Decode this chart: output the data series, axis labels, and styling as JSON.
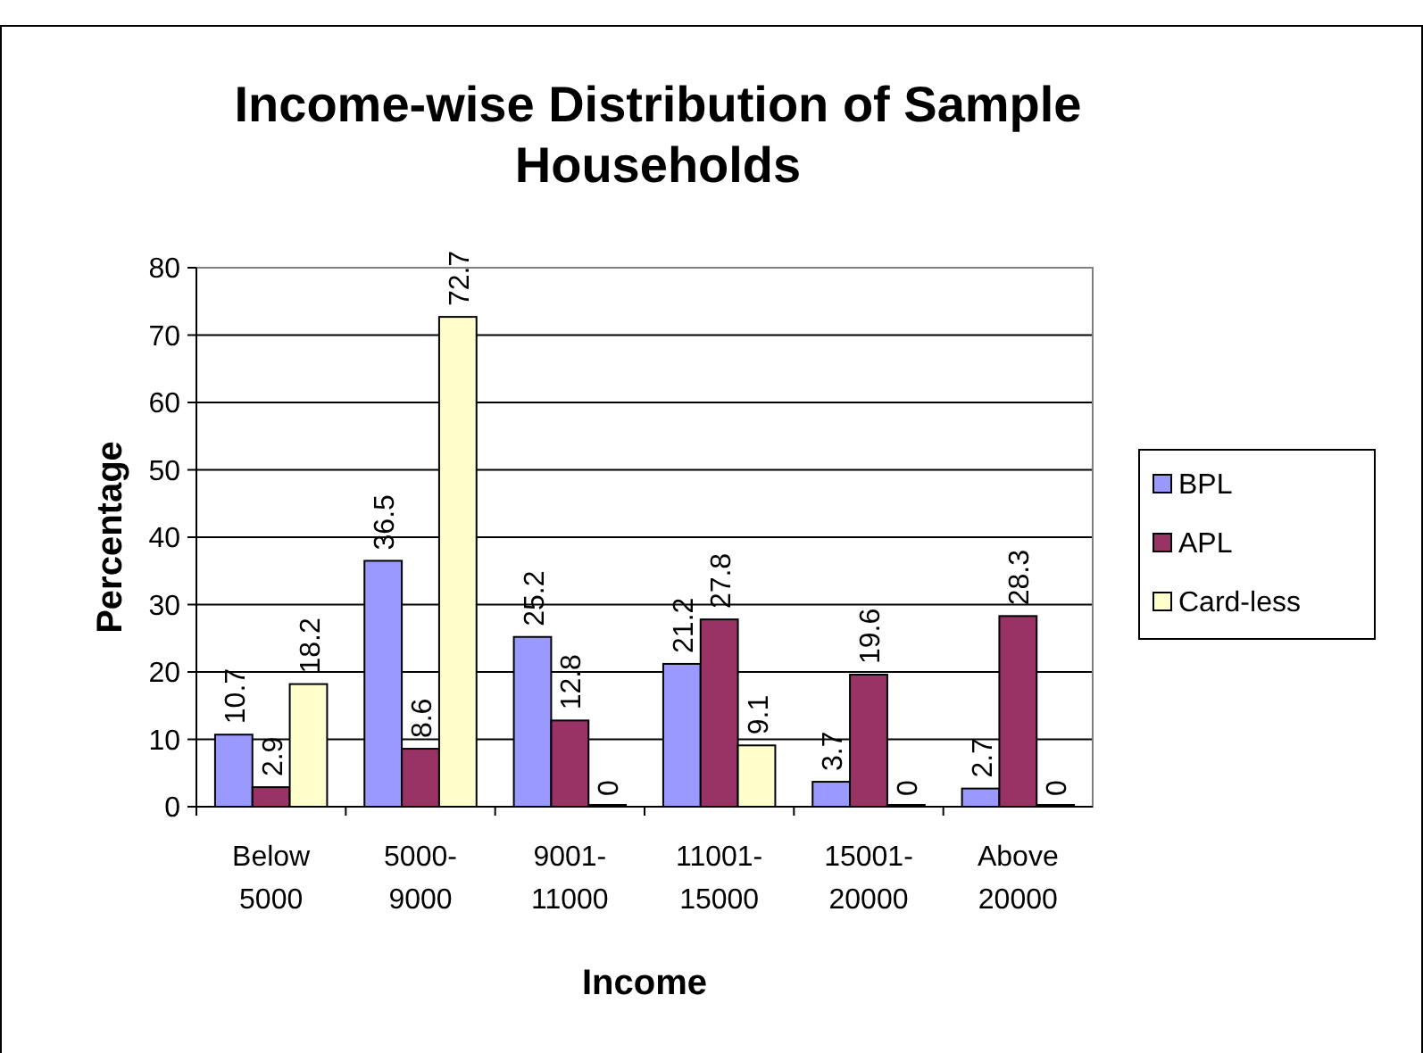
{
  "chart_data": {
    "type": "bar",
    "title": "Income-wise Distribution of Sample Households",
    "xlabel": "Income",
    "ylabel": "Percentage",
    "categories": [
      "Below 5000",
      "5000-9000",
      "9001-11000",
      "11001-15000",
      "15001-20000",
      "Above 20000"
    ],
    "series": [
      {
        "name": "BPL",
        "color": "#9999ff",
        "values": [
          10.7,
          36.5,
          25.2,
          21.2,
          3.7,
          2.7
        ]
      },
      {
        "name": "APL",
        "color": "#993366",
        "values": [
          2.9,
          8.6,
          12.8,
          27.8,
          19.6,
          28.3
        ]
      },
      {
        "name": "Card-less",
        "color": "#ffffcc",
        "values": [
          18.2,
          72.7,
          0,
          9.1,
          0,
          0
        ]
      }
    ],
    "ylim": [
      0,
      80
    ],
    "yticks": [
      0,
      10,
      20,
      30,
      40,
      50,
      60,
      70,
      80
    ],
    "grid": "y",
    "legend": "right",
    "data_labels": true
  }
}
